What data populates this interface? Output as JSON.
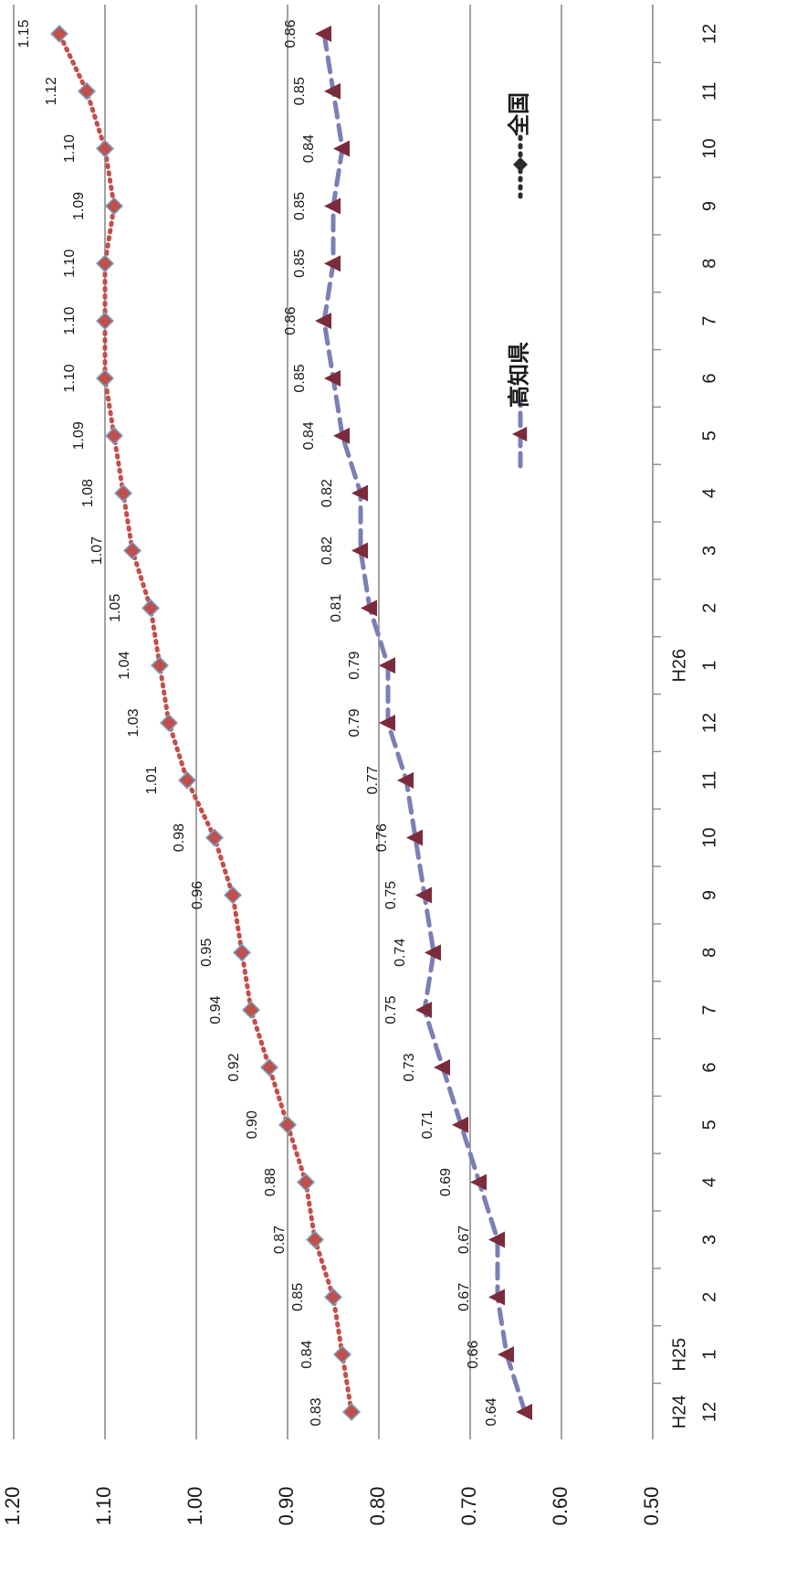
{
  "chart_data": {
    "type": "line",
    "orientation": "rotated-90-clockwise",
    "categories": [
      "12",
      "1",
      "2",
      "3",
      "4",
      "5",
      "6",
      "7",
      "8",
      "9",
      "10",
      "11",
      "12",
      "1",
      "2",
      "3",
      "4",
      "5",
      "6",
      "7",
      "8",
      "9",
      "10",
      "11",
      "12"
    ],
    "year_markers": [
      {
        "index": 0,
        "label": "H24"
      },
      {
        "index": 1,
        "label": "H25"
      },
      {
        "index": 13,
        "label": "H26"
      }
    ],
    "ylim": [
      0.5,
      1.2
    ],
    "yticks": [
      "0.50",
      "0.60",
      "0.70",
      "0.80",
      "0.90",
      "1.00",
      "1.10",
      "1.20"
    ],
    "grid": true,
    "series": [
      {
        "name": "全国",
        "color": "#c0504d",
        "marker": "diamond",
        "line": "dotted",
        "values": [
          0.83,
          0.84,
          0.85,
          0.87,
          0.88,
          0.9,
          0.92,
          0.94,
          0.95,
          0.96,
          0.98,
          1.01,
          1.03,
          1.04,
          1.05,
          1.07,
          1.08,
          1.09,
          1.1,
          1.1,
          1.1,
          1.09,
          1.1,
          1.12,
          1.15
        ],
        "labels": [
          "0.83",
          "0.84",
          "0.85",
          "0.87",
          "0.88",
          "0.90",
          "0.92",
          "0.94",
          "0.95",
          "0.96",
          "0.98",
          "1.01",
          "1.03",
          "1.04",
          "1.05",
          "1.07",
          "1.08",
          "1.09",
          "1.10",
          "1.10",
          "1.10",
          "1.09",
          "1.10",
          "1.12",
          "1.15"
        ]
      },
      {
        "name": "高知県",
        "color": "#7b7fb5",
        "marker_color": "#7b2c3c",
        "marker": "triangle",
        "line": "dashed",
        "values": [
          0.64,
          0.66,
          0.67,
          0.67,
          0.69,
          0.71,
          0.73,
          0.75,
          0.74,
          0.75,
          0.76,
          0.77,
          0.79,
          0.79,
          0.81,
          0.82,
          0.82,
          0.84,
          0.85,
          0.86,
          0.85,
          0.85,
          0.84,
          0.85,
          0.86
        ],
        "labels": [
          "0.64",
          "0.66",
          "0.67",
          "0.67",
          "0.69",
          "0.71",
          "0.73",
          "0.75",
          "0.74",
          "0.75",
          "0.76",
          "0.77",
          "0.79",
          "0.79",
          "0.81",
          "0.82",
          "0.82",
          "0.84",
          "0.85",
          "0.86",
          "0.85",
          "0.85",
          "0.84",
          "0.85",
          "0.86"
        ]
      }
    ],
    "legend": {
      "position": "right-middle",
      "items": [
        {
          "label": "全国",
          "marker": "diamond",
          "color": "#2b2b2b"
        },
        {
          "label": "高知県",
          "marker": "triangle",
          "color": "#7b2c3c"
        }
      ]
    }
  }
}
